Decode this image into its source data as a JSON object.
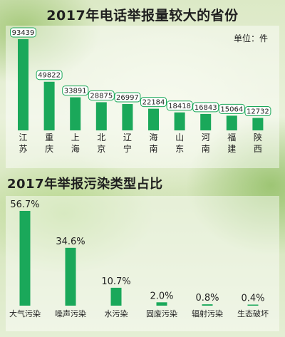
{
  "chart_data": [
    {
      "type": "bar",
      "title": "2017年电话举报量较大的省份",
      "unit_label": "单位：件",
      "categories": [
        "江苏",
        "重庆",
        "上海",
        "北京",
        "辽宁",
        "海南",
        "山东",
        "河南",
        "福建",
        "陕西"
      ],
      "values": [
        93439,
        49822,
        33891,
        28875,
        26997,
        22184,
        18418,
        16843,
        15064,
        12732
      ],
      "value_labels": [
        "93439",
        "49822",
        "33891",
        "28875",
        "26997",
        "22184",
        "18418",
        "16843",
        "15064",
        "12732"
      ],
      "ylim": [
        0,
        100000
      ],
      "grid": false,
      "bar_color": "#1aa85a"
    },
    {
      "type": "bar",
      "title": "2017年举报污染类型占比",
      "categories": [
        "大气污染",
        "噪声污染",
        "水污染",
        "固废污染",
        "辐射污染",
        "生态破坏"
      ],
      "values": [
        56.7,
        34.6,
        10.7,
        2.0,
        0.8,
        0.4
      ],
      "value_labels": [
        "56.7%",
        "34.6%",
        "10.7%",
        "2.0%",
        "0.8%",
        "0.4%"
      ],
      "ylim": [
        0,
        60
      ],
      "grid": false,
      "bar_color": "#1aa85a"
    }
  ]
}
